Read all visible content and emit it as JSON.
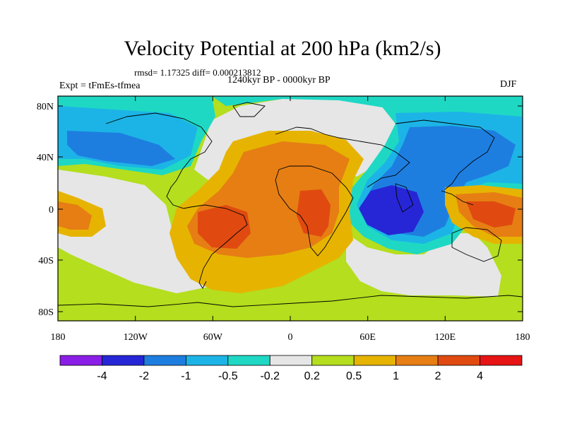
{
  "title": "Velocity Potential at 200 hPa (km2/s)",
  "stats": "rmsd= 1.17325 diff= 0.000213812",
  "subtitle": "1240kyr BP - 0000kyr BP",
  "experiment": "Expt = tFmEs-tfmea",
  "season": "DJF",
  "lat_ticks": [
    "80N",
    "40N",
    "0",
    "40S",
    "80S"
  ],
  "lon_ticks": [
    "180",
    "120W",
    "60W",
    "0",
    "60E",
    "120E",
    "180"
  ],
  "colorbar": {
    "labels": [
      "-4",
      "-2",
      "-1",
      "-0.5",
      "-0.2",
      "0.2",
      "0.5",
      "1",
      "2",
      "4"
    ],
    "colors": [
      "#8a1ee6",
      "#2626d6",
      "#1e7ee0",
      "#1cb4e6",
      "#1ed8c4",
      "#e6e6e6",
      "#b4de1e",
      "#e6b400",
      "#e67e14",
      "#e04a10",
      "#e61414"
    ]
  }
}
